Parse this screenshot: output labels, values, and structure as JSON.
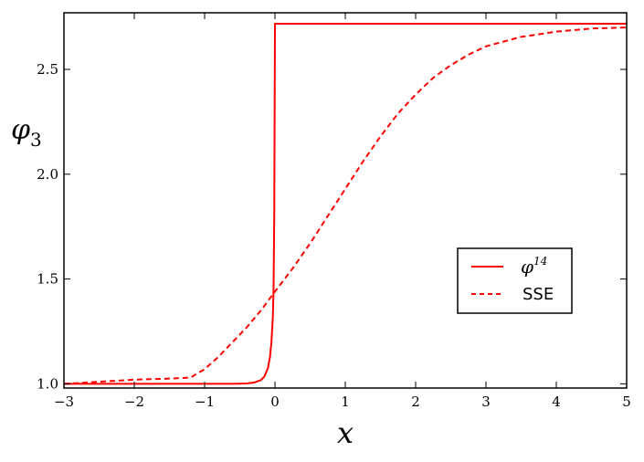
{
  "chart_data": {
    "type": "line",
    "xlabel": "x",
    "ylabel": {
      "base": "φ",
      "sub": "3"
    },
    "xlim": [
      -3,
      5
    ],
    "ylim": [
      0.98,
      2.77
    ],
    "xticks": [
      -3,
      -2,
      -1,
      0,
      1,
      2,
      3,
      4,
      5
    ],
    "xtick_labels": [
      "−3",
      "−2",
      "−1",
      "0",
      "1",
      "2",
      "3",
      "4",
      "5"
    ],
    "yticks": [
      1.0,
      1.5,
      2.0,
      2.5
    ],
    "ytick_labels": [
      "1.0",
      "1.5",
      "2.0",
      "2.5"
    ],
    "grid": false,
    "legend_position": "center-right",
    "series": [
      {
        "name": "φ^14",
        "legend_base": "φ",
        "legend_sup": "14",
        "style": "solid",
        "color": "#ff0000",
        "x": [
          -3,
          -2,
          -1,
          -0.6,
          -0.4,
          -0.3,
          -0.2,
          -0.15,
          -0.1,
          -0.07,
          -0.05,
          -0.03,
          -0.02,
          -0.01,
          0,
          0.01,
          0.5,
          1,
          2,
          3,
          4,
          5
        ],
        "y": [
          1.0,
          1.0,
          1.0,
          1.0,
          1.002,
          1.006,
          1.018,
          1.035,
          1.075,
          1.13,
          1.2,
          1.32,
          1.45,
          1.8,
          2.718,
          2.718,
          2.718,
          2.718,
          2.718,
          2.718,
          2.718,
          2.718
        ]
      },
      {
        "name": "SSE",
        "legend_base": "SSE",
        "style": "dashed",
        "color": "#ff0000",
        "x": [
          -3,
          -2.5,
          -2,
          -1.5,
          -1.2,
          -1,
          -0.8,
          -0.6,
          -0.4,
          -0.2,
          0,
          0.25,
          0.5,
          0.75,
          1,
          1.25,
          1.5,
          1.75,
          2,
          2.25,
          2.5,
          2.75,
          3,
          3.5,
          4,
          4.5,
          5
        ],
        "y": [
          1.0,
          1.01,
          1.02,
          1.025,
          1.03,
          1.07,
          1.13,
          1.2,
          1.27,
          1.35,
          1.44,
          1.55,
          1.67,
          1.8,
          1.93,
          2.06,
          2.18,
          2.29,
          2.38,
          2.46,
          2.52,
          2.57,
          2.61,
          2.655,
          2.68,
          2.695,
          2.7
        ]
      }
    ]
  }
}
